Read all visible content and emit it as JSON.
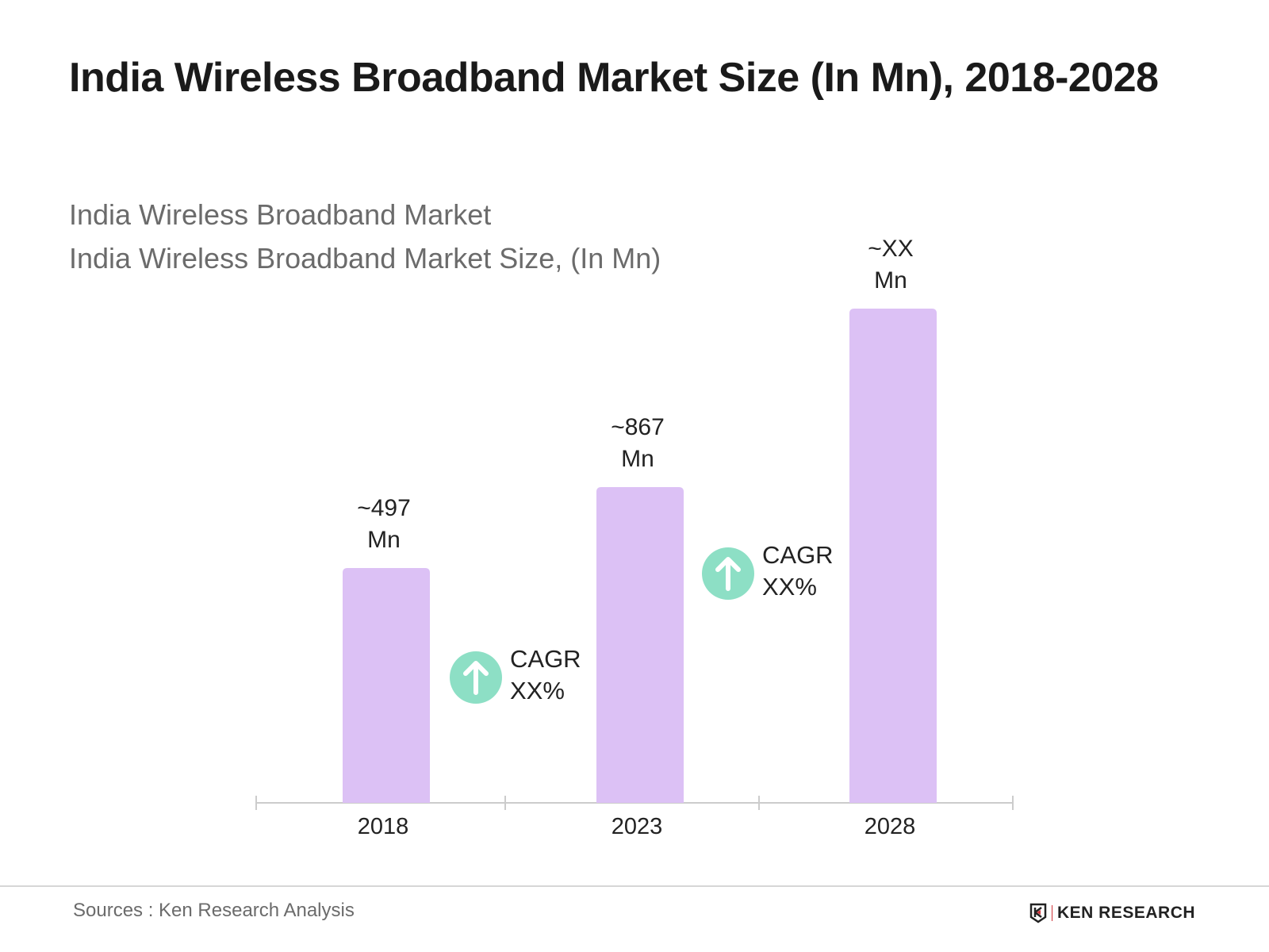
{
  "chart_data": {
    "type": "bar",
    "title": "India Wireless Broadband Market Size (In Mn), 2018-2028",
    "subtitle_lines": [
      "India Wireless Broadband Market",
      "India Wireless Broadband Market Size, (In Mn)"
    ],
    "categories": [
      "2018",
      "2023",
      "2028"
    ],
    "values": [
      497,
      867,
      null
    ],
    "data_labels": [
      {
        "line1": "~497",
        "line2": "Mn"
      },
      {
        "line1": "~867",
        "line2": "Mn"
      },
      {
        "line1": "~XX",
        "line2": "Mn"
      }
    ],
    "annotations": [
      {
        "icon": "arrow-up-circle-icon",
        "line1": "CAGR",
        "line2": "XX%"
      },
      {
        "icon": "arrow-up-circle-icon",
        "line1": "CAGR",
        "line2": "XX%"
      }
    ],
    "xlabel": "",
    "ylabel": "",
    "grid": false,
    "legend": "none",
    "colors": {
      "bar": "#dcc1f5",
      "cagr_icon": "#8ddfc5",
      "axis": "#cccccc"
    }
  },
  "footer": {
    "source": "Sources : Ken Research Analysis",
    "logo_text": "KEN RESEARCH"
  }
}
